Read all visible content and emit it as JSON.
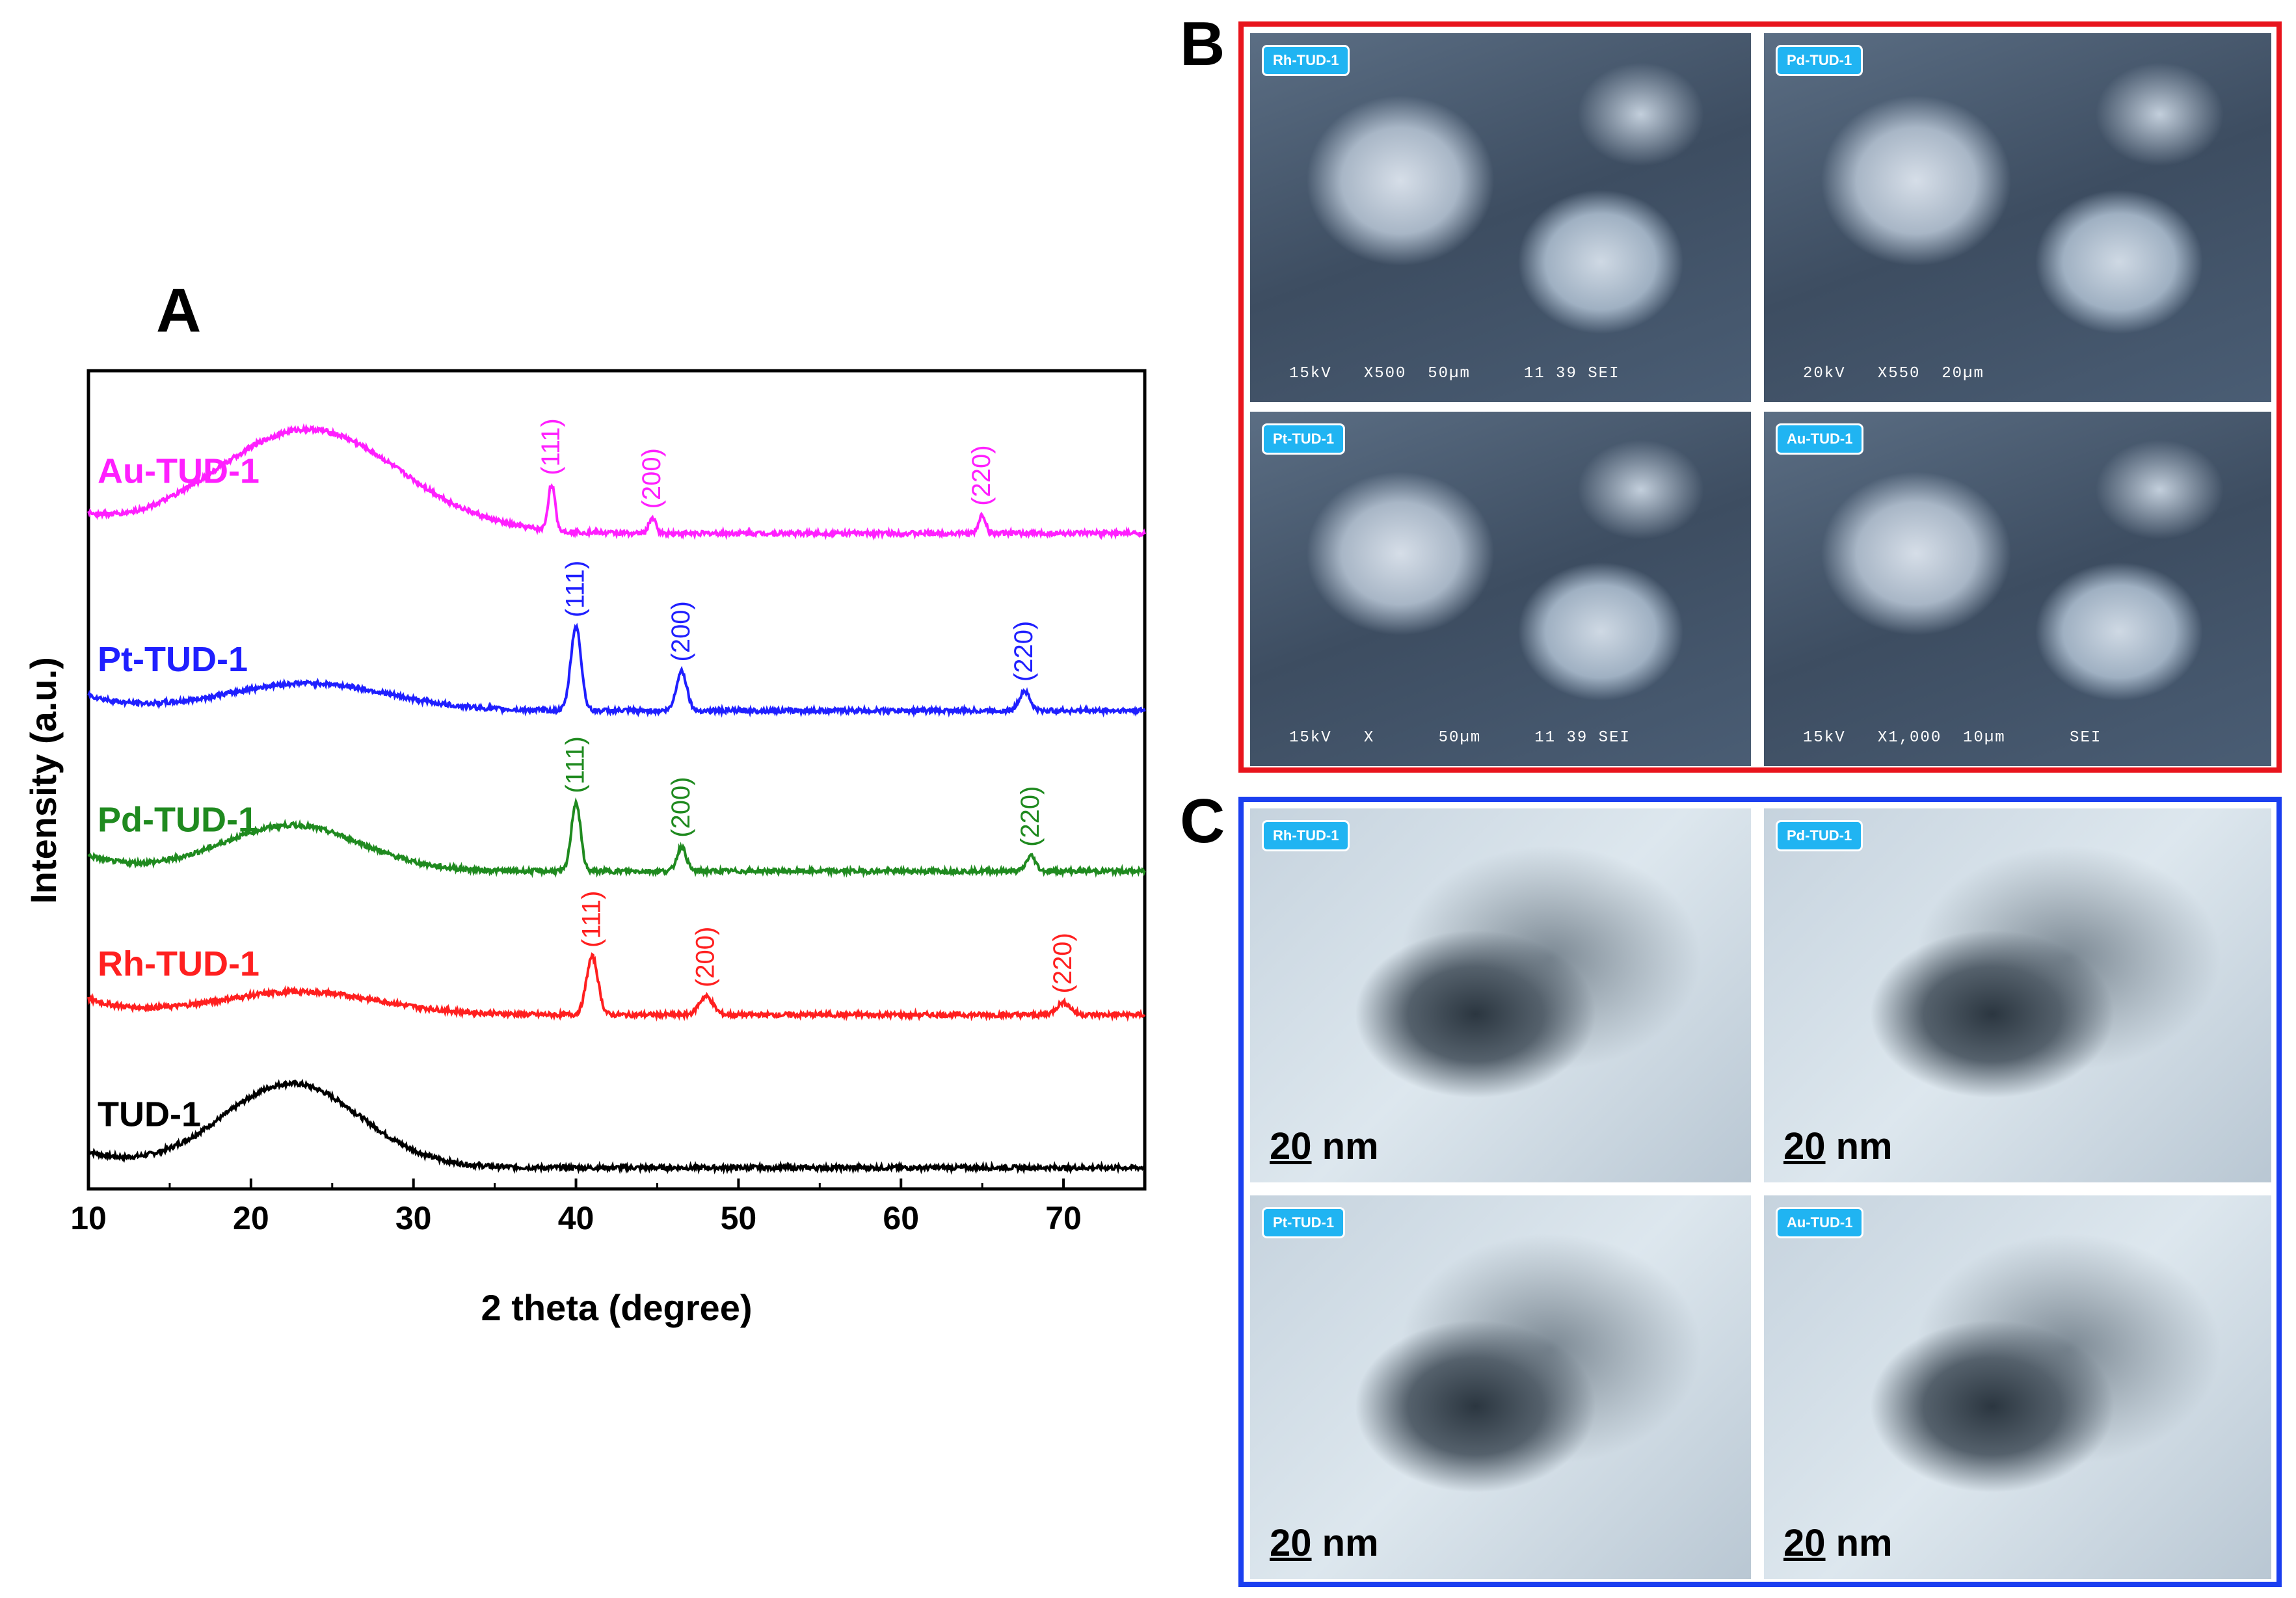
{
  "chart_data": {
    "type": "line",
    "panel_label": "A",
    "xlabel": "2 theta (degree)",
    "ylabel": "Intensity (a.u.)",
    "xlim": [
      10,
      75
    ],
    "x_ticks": [
      10,
      20,
      30,
      40,
      50,
      60,
      70
    ],
    "y_ticks_shown": false,
    "grid": false,
    "legend": "series labels placed on the left above each trace",
    "series": [
      {
        "name": "TUD-1",
        "color": "#000000",
        "offset": 0,
        "hump": {
          "center": 22.5,
          "height": 0.55,
          "width": 6
        },
        "peaks": [],
        "end_level": 0.02
      },
      {
        "name": "Rh-TUD-1",
        "color": "#ff1f1f",
        "offset": 1.0,
        "hump": {
          "center": 23,
          "height": 0.15,
          "width": 7
        },
        "peaks": [
          {
            "x": 41.0,
            "h": 0.38,
            "w": 0.5,
            "hkl": "(111)"
          },
          {
            "x": 48.0,
            "h": 0.12,
            "w": 0.6,
            "hkl": "(200)"
          },
          {
            "x": 70.0,
            "h": 0.08,
            "w": 0.6,
            "hkl": "(220)"
          }
        ],
        "end_level": 0.02
      },
      {
        "name": "Pd-TUD-1",
        "color": "#1f8a1f",
        "offset": 1.95,
        "hump": {
          "center": 22.5,
          "height": 0.3,
          "width": 6
        },
        "peaks": [
          {
            "x": 40.0,
            "h": 0.45,
            "w": 0.4,
            "hkl": "(111)"
          },
          {
            "x": 46.5,
            "h": 0.16,
            "w": 0.4,
            "hkl": "(200)"
          },
          {
            "x": 68.0,
            "h": 0.1,
            "w": 0.4,
            "hkl": "(220)"
          }
        ],
        "end_level": 0.01
      },
      {
        "name": "Pt-TUD-1",
        "color": "#1f1fff",
        "offset": 3.0,
        "hump": {
          "center": 23.5,
          "height": 0.18,
          "width": 7
        },
        "peaks": [
          {
            "x": 40.0,
            "h": 0.55,
            "w": 0.45,
            "hkl": "(111)"
          },
          {
            "x": 46.5,
            "h": 0.26,
            "w": 0.45,
            "hkl": "(200)"
          },
          {
            "x": 67.6,
            "h": 0.13,
            "w": 0.45,
            "hkl": "(220)"
          }
        ],
        "end_level": 0.01
      },
      {
        "name": "Au-TUD-1",
        "color": "#ff1fff",
        "offset": 4.15,
        "hump": {
          "center": 23.5,
          "height": 0.68,
          "width": 8
        },
        "peaks": [
          {
            "x": 38.5,
            "h": 0.3,
            "w": 0.3,
            "hkl": "(111)"
          },
          {
            "x": 44.7,
            "h": 0.1,
            "w": 0.3,
            "hkl": "(200)"
          },
          {
            "x": 65.0,
            "h": 0.12,
            "w": 0.3,
            "hkl": "(220)"
          }
        ],
        "end_level": 0.02
      }
    ]
  },
  "panel_b": {
    "label": "B",
    "frame_color": "#e8141c",
    "images": [
      {
        "tag": "Rh-TUD-1",
        "info": "15kV   X500  50µm     11 39 SEI"
      },
      {
        "tag": "Pd-TUD-1",
        "info": "20kV   X550  20µm"
      },
      {
        "tag": "Pt-TUD-1",
        "info": "15kV   X      50µm     11 39 SEI"
      },
      {
        "tag": "Au-TUD-1",
        "info": "15kV   X1,000  10µm      SEI"
      }
    ]
  },
  "panel_c": {
    "label": "C",
    "frame_color": "#1b3ff0",
    "scale_number": "20",
    "scale_unit": " nm",
    "images": [
      {
        "tag": "Rh-TUD-1"
      },
      {
        "tag": "Pd-TUD-1"
      },
      {
        "tag": "Pt-TUD-1"
      },
      {
        "tag": "Au-TUD-1"
      }
    ]
  }
}
